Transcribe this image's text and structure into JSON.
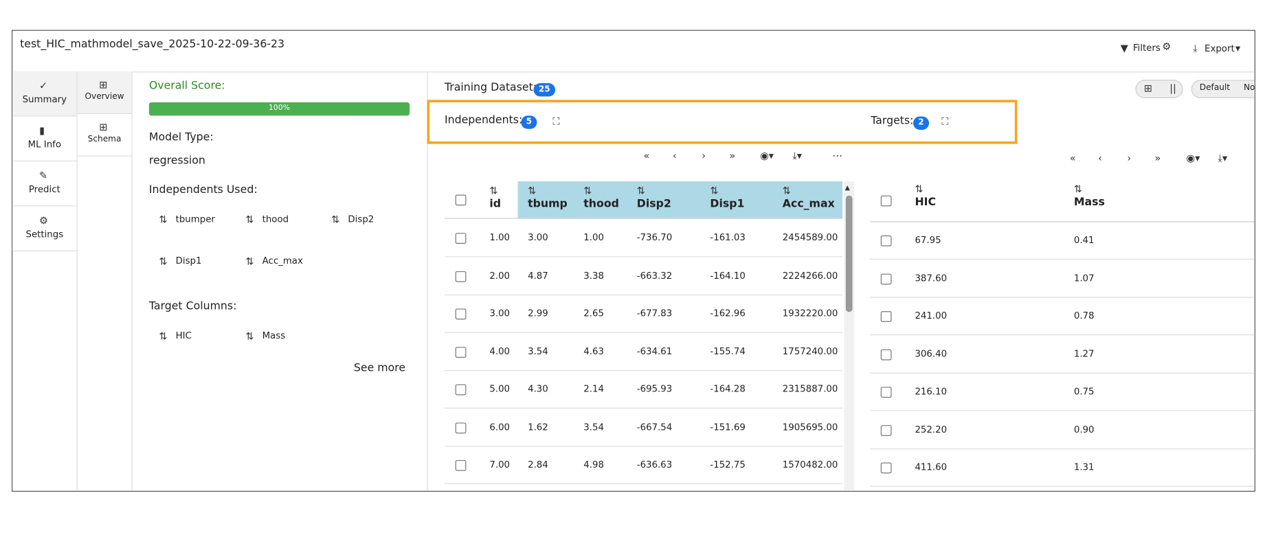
{
  "header": {
    "title": "test_HIC_mathmodel_save_2025-10-22-09-36-23",
    "filters": "Filters",
    "export": "Export"
  },
  "sidebar": [
    "Summary",
    "ML Info",
    "Predict",
    "Settings"
  ],
  "subnav": [
    "Overview",
    "Schema"
  ],
  "summary": {
    "score_label": "Overall Score:",
    "score": {
      "value": 100,
      "label": "100%"
    },
    "model_type_label": "Model Type:",
    "model_type": "regression",
    "independents_label": "Independents Used:",
    "independents": [
      "tbumper",
      "thood",
      "Disp2",
      "Disp1",
      "Acc_max"
    ],
    "targets_label": "Target Columns:",
    "targets": [
      "HIC",
      "Mass"
    ],
    "see_more": "See more"
  },
  "dataset": {
    "label": "Training Dataset:",
    "count": "25",
    "independents_label": "Independents:",
    "independents_count": "5",
    "targets_label": "Targets:",
    "targets_count": "2",
    "view_default": "Default",
    "view_no": "No"
  },
  "independents_table": {
    "columns": [
      "id",
      "tbump",
      "thood",
      "Disp2",
      "Disp1",
      "Acc_max"
    ],
    "rows": [
      [
        "1.00",
        "3.00",
        "1.00",
        "-736.70",
        "-161.03",
        "2454589.00"
      ],
      [
        "2.00",
        "4.87",
        "3.38",
        "-663.32",
        "-164.10",
        "2224266.00"
      ],
      [
        "3.00",
        "2.99",
        "2.65",
        "-677.83",
        "-162.96",
        "1932220.00"
      ],
      [
        "4.00",
        "3.54",
        "4.63",
        "-634.61",
        "-155.74",
        "1757240.00"
      ],
      [
        "5.00",
        "4.30",
        "2.14",
        "-695.93",
        "-164.28",
        "2315887.00"
      ],
      [
        "6.00",
        "1.62",
        "3.54",
        "-667.54",
        "-151.69",
        "1905695.00"
      ],
      [
        "7.00",
        "2.84",
        "4.98",
        "-636.63",
        "-152.75",
        "1570482.00"
      ]
    ]
  },
  "targets_table": {
    "columns": [
      "HIC",
      "Mass"
    ],
    "rows": [
      [
        "67.95",
        "0.41"
      ],
      [
        "387.60",
        "1.07"
      ],
      [
        "241.00",
        "0.78"
      ],
      [
        "306.40",
        "1.27"
      ],
      [
        "216.10",
        "0.75"
      ],
      [
        "252.20",
        "0.90"
      ],
      [
        "411.60",
        "1.31"
      ]
    ]
  }
}
